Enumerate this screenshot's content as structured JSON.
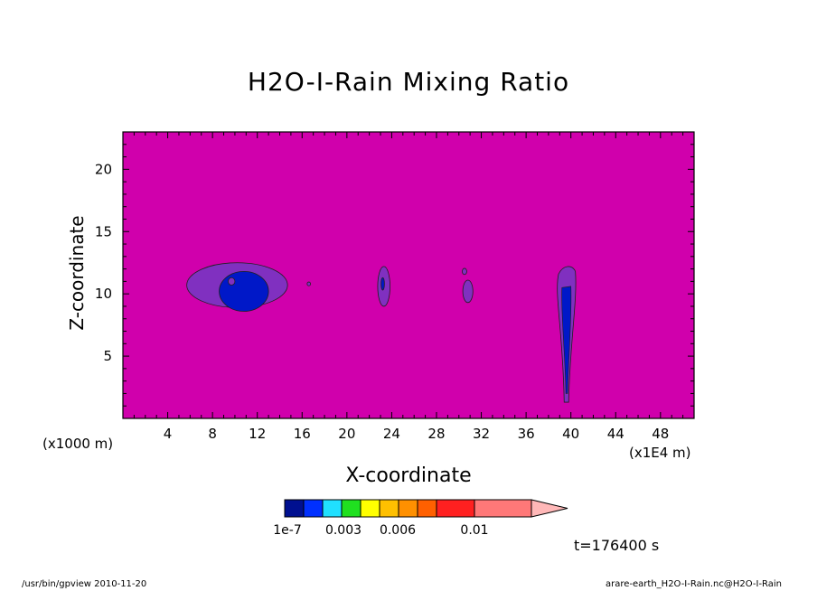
{
  "chart_data": {
    "type": "heatmap",
    "title": "H2O-I-Rain Mixing Ratio",
    "xlabel": "X-coordinate",
    "ylabel": "Z-coordinate",
    "x_unit_left": "(x1000 m)",
    "x_unit_right": "(x1E4 m)",
    "x_ticks": [
      4,
      8,
      12,
      16,
      20,
      24,
      28,
      32,
      36,
      40,
      44,
      48
    ],
    "y_ticks": [
      5,
      10,
      15,
      20
    ],
    "xlim": [
      0,
      51
    ],
    "ylim": [
      0,
      23
    ],
    "background_value": "1e-7",
    "colorbar": {
      "colors": [
        "#001090",
        "#0030ff",
        "#20e0ff",
        "#20e020",
        "#ffff00",
        "#ffc000",
        "#ff9000",
        "#ff6000",
        "#ff2020",
        "#ff7878",
        "#ffb8b8"
      ],
      "tick_labels": [
        "1e-7",
        "0.003",
        "0.006",
        "0.01"
      ]
    },
    "features": [
      {
        "name": "blob-8-13",
        "x_center": 10.2,
        "z_center": 10.7,
        "level": "low"
      },
      {
        "name": "blob-23",
        "x_center": 23.3,
        "z_center": 10.6,
        "level": "low"
      },
      {
        "name": "blob-31",
        "x_center": 30.8,
        "z_center": 10.6,
        "level": "low"
      },
      {
        "name": "column-39",
        "x_center": 39.6,
        "z_center": 7.0,
        "level": "low"
      }
    ]
  },
  "time_label": "t=176400 s",
  "footer": {
    "left": "/usr/bin/gpview  2010-11-20",
    "right": "arare-earth_H2O-I-Rain.nc@H2O-I-Rain"
  },
  "colors": {
    "field_background": "#d000ac",
    "contour_purple": "#8030c0",
    "contour_blue": "#0018c8"
  }
}
